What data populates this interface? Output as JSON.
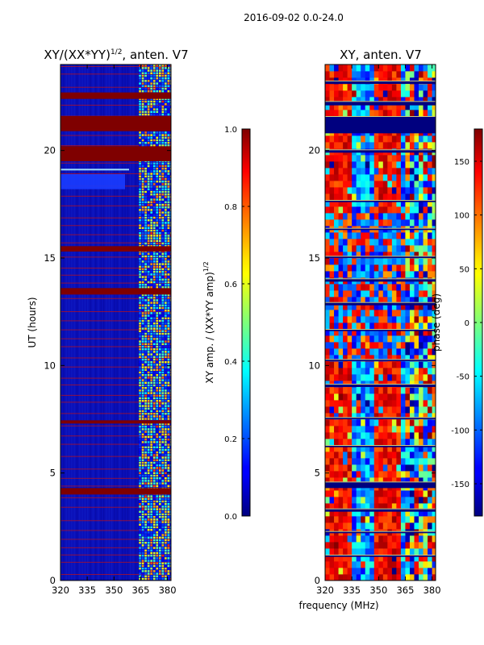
{
  "chart_data": {
    "type": "heatmap",
    "suptitle": "2016-09-02 0.0-24.0",
    "shared_xlabel": "frequency (MHz)",
    "panels": [
      {
        "id": "amp",
        "title_main": "XY/(XX*YY)",
        "title_exp": "1/2",
        "title_tail": ", anten. V7",
        "ylabel": "UT (hours)",
        "xlim": [
          320,
          382
        ],
        "ylim": [
          0,
          24
        ],
        "xticks": [
          "320",
          "335",
          "350",
          "365",
          "380"
        ],
        "xtick_values": [
          320,
          335,
          350,
          365,
          380
        ],
        "yticks": [
          "0",
          "5",
          "10",
          "15",
          "20"
        ],
        "ytick_values": [
          0,
          5,
          10,
          15,
          20
        ],
        "colorbar": {
          "label_main": "XY amp. / (XX*YY amp)",
          "label_exp": "1/2",
          "range": [
            0.0,
            1.0
          ],
          "ticks": [
            "0.0",
            "0.2",
            "0.4",
            "0.6",
            "0.8",
            "1.0"
          ],
          "tick_values": [
            0.0,
            0.2,
            0.4,
            0.6,
            0.8,
            1.0
          ]
        },
        "saturated_bands_hours": [
          [
            4.0,
            4.3
          ],
          [
            7.3,
            7.45
          ],
          [
            13.3,
            13.6
          ],
          [
            15.3,
            15.55
          ],
          [
            19.5,
            20.2
          ],
          [
            20.9,
            21.6
          ],
          [
            22.4,
            22.7
          ]
        ],
        "high_variability_band_mhz": [
          364,
          382
        ]
      },
      {
        "id": "phase",
        "title_main": "XY, anten. V7",
        "xlim": [
          320,
          382
        ],
        "ylim": [
          0,
          24
        ],
        "xticks": [
          "320",
          "335",
          "350",
          "365",
          "380"
        ],
        "xtick_values": [
          320,
          335,
          350,
          365,
          380
        ],
        "yticks": [
          "0",
          "5",
          "10",
          "15",
          "20"
        ],
        "ytick_values": [
          0,
          5,
          10,
          15,
          20
        ],
        "colorbar": {
          "label_main": "phase (deg)",
          "range": [
            -180,
            180
          ],
          "ticks": [
            "-150",
            "-100",
            "-50",
            "0",
            "50",
            "100",
            "150"
          ],
          "tick_values": [
            -150,
            -100,
            -50,
            0,
            50,
            100,
            150
          ]
        },
        "gap_bands_hours": [
          [
            1.1,
            1.2
          ],
          [
            2.2,
            2.3
          ],
          [
            3.2,
            3.35
          ],
          [
            4.3,
            4.6
          ],
          [
            6.2,
            6.3
          ],
          [
            7.5,
            7.6
          ],
          [
            9.0,
            9.15
          ],
          [
            10.2,
            10.3
          ],
          [
            11.6,
            11.7
          ],
          [
            12.8,
            12.95
          ],
          [
            13.9,
            14.05
          ],
          [
            15.0,
            15.1
          ],
          [
            16.3,
            16.4
          ],
          [
            17.6,
            17.7
          ],
          [
            19.9,
            20.05
          ],
          [
            20.8,
            21.6
          ],
          [
            22.1,
            22.3
          ],
          [
            23.1,
            23.25
          ]
        ]
      }
    ]
  }
}
